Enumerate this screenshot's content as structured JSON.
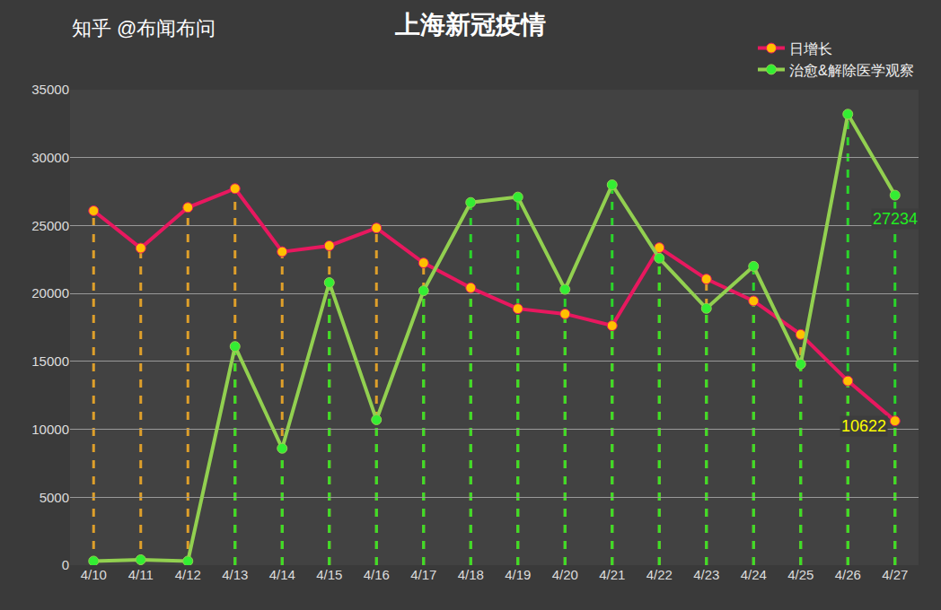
{
  "chart_data": {
    "type": "line",
    "title": "上海新冠疫情",
    "categories": [
      "4/10",
      "4/11",
      "4/12",
      "4/13",
      "4/14",
      "4/15",
      "4/16",
      "4/17",
      "4/18",
      "4/19",
      "4/20",
      "4/21",
      "4/22",
      "4/23",
      "4/24",
      "4/25",
      "4/26",
      "4/27"
    ],
    "series": [
      {
        "name": "日增长",
        "color": "#e8185f",
        "marker": "circle",
        "values": [
          26087,
          23342,
          26330,
          27719,
          23073,
          23513,
          24820,
          22248,
          20417,
          18878,
          18495,
          17629,
          23370,
          21058,
          19455,
          16983,
          13562,
          10622
        ]
      },
      {
        "name": "治愈&解除医学观察",
        "color": "#92d050",
        "marker": "circle",
        "values": [
          300,
          400,
          300,
          16100,
          8600,
          20800,
          10700,
          20200,
          26700,
          27100,
          20300,
          28000,
          22600,
          18900,
          22000,
          14800,
          33200,
          27234
        ]
      }
    ],
    "ylim": [
      0,
      35000
    ],
    "yticks": [
      0,
      5000,
      10000,
      15000,
      20000,
      25000,
      30000,
      35000
    ],
    "grid": true,
    "legend": "top-right",
    "annotations": [
      {
        "text": "10622",
        "x": "4/27",
        "y": 10622,
        "color": "#ffff00"
      },
      {
        "text": "27234",
        "x": "4/27",
        "y": 27234,
        "color": "#22ee22"
      },
      {
        "text": "知乎 @布闻布问",
        "color": "#ffffff"
      }
    ]
  }
}
